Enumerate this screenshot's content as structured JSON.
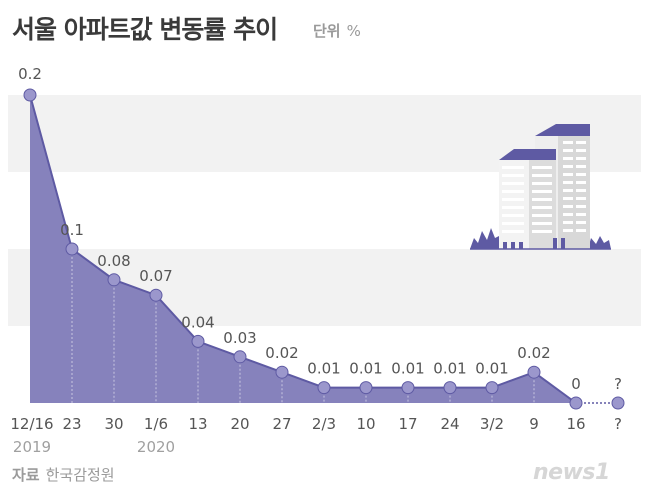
{
  "title": "서울 아파트값 변동률 추이",
  "unit_label": "단위",
  "unit_symbol": "%",
  "source_label": "자료",
  "source_name": "한국감정원",
  "logo_text": "news1",
  "colors": {
    "area": "#7f7bb8",
    "line": "#5e5aa3",
    "point": "#9b97cc",
    "band": "#f2f2f2",
    "text": "#555555",
    "building": "#5e5aa3"
  },
  "chart_data": {
    "type": "area",
    "categories": [
      "12/16",
      "23",
      "30",
      "1/6",
      "13",
      "20",
      "27",
      "2/3",
      "10",
      "17",
      "24",
      "3/2",
      "9",
      "16",
      "?"
    ],
    "year_labels": [
      "2019",
      "",
      "",
      "2020",
      "",
      "",
      "",
      "",
      "",
      "",
      "",
      "",
      "",
      "",
      ""
    ],
    "values": [
      0.2,
      0.1,
      0.08,
      0.07,
      0.04,
      0.03,
      0.02,
      0.01,
      0.01,
      0.01,
      0.01,
      0.01,
      0.02,
      0,
      null
    ],
    "value_labels": [
      "0.2",
      "0.1",
      "0.08",
      "0.07",
      "0.04",
      "0.03",
      "0.02",
      "0.01",
      "0.01",
      "0.01",
      "0.01",
      "0.01",
      "0.02",
      "0",
      "?"
    ],
    "unknown_last_point": true,
    "ylim": [
      0,
      0.2
    ],
    "grid": "alternating horizontal bands",
    "legend": "none"
  }
}
